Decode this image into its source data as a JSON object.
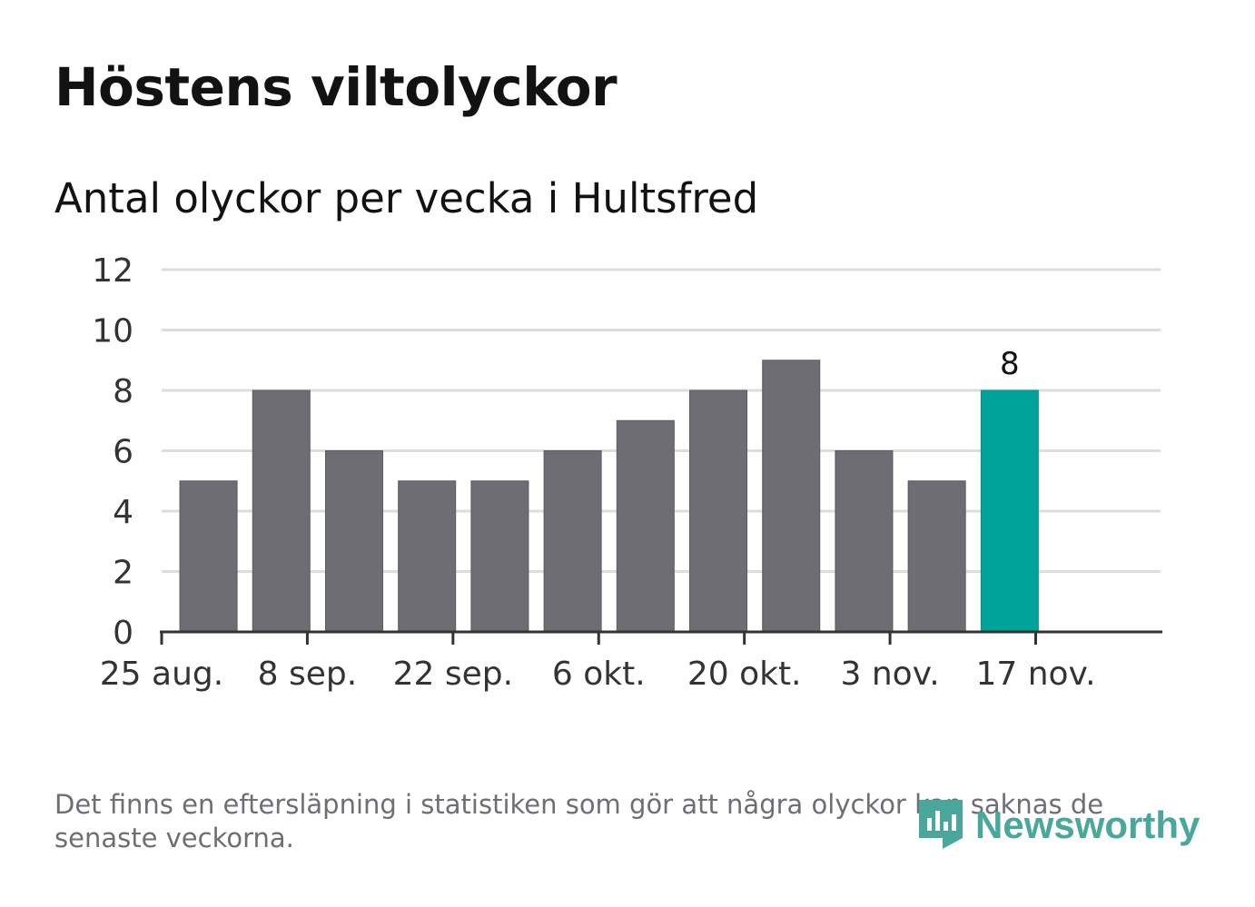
{
  "title": "Höstens viltolyckor",
  "subtitle": "Antal olyckor per vecka i Hultsfred",
  "footnote": "Det finns en eftersläpning i statistiken som gör att några olyckor kan saknas de senaste veckorna.",
  "brand": {
    "name": "Newsworthy",
    "icon": "newsworthy-logo-icon"
  },
  "colors": {
    "bar": "#6e6d73",
    "highlight": "#00a39a",
    "grid": "#dddddd",
    "axis": "#333333",
    "text": "#121212",
    "muted": "#6e6e73",
    "brand": "#4aa79b"
  },
  "chart_data": {
    "type": "bar",
    "title": "Antal olyckor per vecka i Hultsfred",
    "xlabel": "",
    "ylabel": "",
    "x": [
      "2019-08-26",
      "2019-09-02",
      "2019-09-09",
      "2019-09-16",
      "2019-09-23",
      "2019-09-30",
      "2019-10-07",
      "2019-10-14",
      "2019-10-21",
      "2019-10-28",
      "2019-11-04",
      "2019-11-11"
    ],
    "values": [
      5,
      8,
      6,
      5,
      5,
      6,
      7,
      8,
      9,
      6,
      5,
      8
    ],
    "highlight_index": 11,
    "highlight_label": "8",
    "ylim": [
      0,
      12
    ],
    "yticks": [
      0,
      2,
      4,
      6,
      8,
      10,
      12
    ],
    "xticks": [
      {
        "date": "2019-08-25",
        "label": "25 aug."
      },
      {
        "date": "2019-09-08",
        "label": "8 sep."
      },
      {
        "date": "2019-09-22",
        "label": "22 sep."
      },
      {
        "date": "2019-10-06",
        "label": "6 okt."
      },
      {
        "date": "2019-10-20",
        "label": "20 okt."
      },
      {
        "date": "2019-11-03",
        "label": "3 nov."
      },
      {
        "date": "2019-11-17",
        "label": "17 nov."
      }
    ],
    "xlim": [
      "2019-08-25",
      "2019-11-29"
    ],
    "grid": true,
    "legend": "none"
  }
}
